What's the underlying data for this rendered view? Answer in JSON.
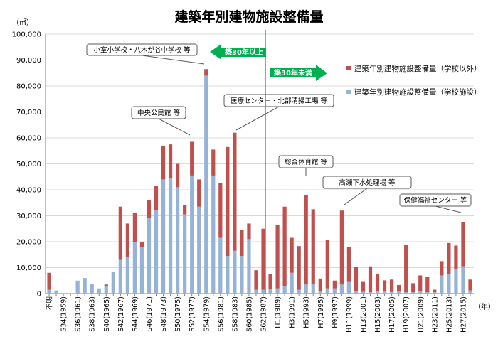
{
  "chart_data": {
    "type": "bar",
    "stacked": true,
    "title": "建築年別建物施設整備量",
    "ylabel": "（㎡）",
    "xlabel": "（年）",
    "ylim": [
      0,
      100000
    ],
    "yticks": [
      0,
      10000,
      20000,
      30000,
      40000,
      50000,
      60000,
      70000,
      80000,
      90000,
      100000
    ],
    "ytick_labels": [
      "0",
      "10,000",
      "20,000",
      "30,000",
      "40,000",
      "50,000",
      "60,000",
      "70,000",
      "80,000",
      "90,000",
      "100,000"
    ],
    "grid": true,
    "legend_position": "top-right",
    "categories": [
      "不明",
      "S33",
      "S34(1959)",
      "S35",
      "S36(1961)",
      "S37",
      "S38(1963)",
      "S39",
      "S40(1965)",
      "S41",
      "S42(1967)",
      "S43",
      "S44(1969)",
      "S45",
      "S46(1971)",
      "S47",
      "S48(1973)",
      "S49",
      "S50(1975)",
      "S51",
      "S52(1977)",
      "S53",
      "S54(1979)",
      "S55",
      "S56(1981)",
      "S57",
      "S58(1983)",
      "S59",
      "S60(1985)",
      "S61",
      "S62(1987)",
      "S63",
      "H1(1989)",
      "H2",
      "H3(1991)",
      "H4",
      "H5(1993)",
      "H6",
      "H7(1995)",
      "H8",
      "H9(1997)",
      "H10",
      "H11(1999)",
      "H12",
      "H13(2001)",
      "H14",
      "H15(2003)",
      "H16",
      "H17(2005)",
      "H18",
      "H19(2007)",
      "H20",
      "H21(2009)",
      "H22",
      "H23(2011)",
      "H24",
      "H25(2013)",
      "H26",
      "H27(2015)",
      "H28"
    ],
    "series": [
      {
        "name": "建築年別建物施設整備量（学校施設）",
        "color": "#95b3d7",
        "values": [
          1500,
          1200,
          0,
          0,
          5000,
          6000,
          3800,
          2000,
          3000,
          8500,
          13000,
          14000,
          20000,
          18000,
          29000,
          32000,
          44000,
          44500,
          41000,
          30500,
          45500,
          33500,
          84000,
          45500,
          21500,
          14500,
          16500,
          14500,
          21000,
          1500,
          1500,
          1800,
          2000,
          3000,
          8000,
          1500,
          3500,
          3500,
          800,
          2000,
          2000,
          3500,
          4500,
          800,
          700,
          500,
          900,
          900,
          600,
          800,
          500,
          500,
          800,
          500,
          500,
          7000,
          7500,
          9500,
          10500,
          1200
        ]
      },
      {
        "name": "建築年別建物施設整備量（学校以外）",
        "color": "#c0504d",
        "values": [
          6500,
          0,
          0,
          0,
          0,
          0,
          0,
          0,
          500,
          0,
          20500,
          13000,
          11000,
          2000,
          7000,
          9500,
          13000,
          13000,
          9000,
          3500,
          13000,
          10500,
          2500,
          10000,
          21000,
          42000,
          45500,
          10000,
          6000,
          7500,
          23500,
          5800,
          24500,
          30500,
          13500,
          16800,
          34500,
          29000,
          5000,
          18700,
          3000,
          28500,
          13500,
          9500,
          3800,
          10000,
          6600,
          4200,
          4800,
          2500,
          18200,
          3500,
          6200,
          5800,
          1000,
          5500,
          12000,
          9000,
          17000,
          4200
        ]
      }
    ],
    "annotations": [
      {
        "label": "小室小学校・八木が谷中学校 等",
        "category": "S54(1979)"
      },
      {
        "label": "中央公民館 等",
        "category": "S52(1977)"
      },
      {
        "label": "医療センター・北部清掃工場 等",
        "category": "S58(1983)"
      },
      {
        "label": "総合体育館 等",
        "category": "H5(1993)"
      },
      {
        "label": "高瀬下水処理場 等",
        "category": "H10"
      },
      {
        "label": "保健福祉センター 等",
        "category": "H27(2015)"
      }
    ],
    "divider": {
      "category": "S62(1987)",
      "left_label": "築30年以上",
      "right_label": "築30年未満",
      "color": "#00b050"
    }
  }
}
